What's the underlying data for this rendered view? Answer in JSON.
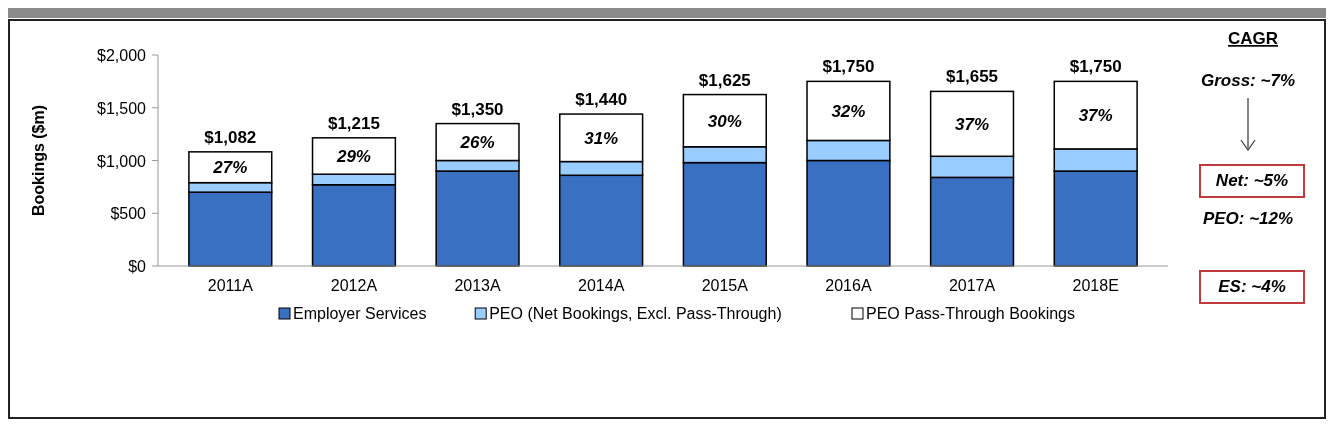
{
  "chart_data": {
    "type": "bar",
    "stacked": true,
    "ylabel": "Bookings ($m)",
    "categories": [
      "2011A",
      "2012A",
      "2013A",
      "2014A",
      "2015A",
      "2016A",
      "2017A",
      "2018E"
    ],
    "series": [
      {
        "name": "Employer Services",
        "color": "#3a70c2",
        "values": [
          700,
          770,
          900,
          860,
          980,
          1000,
          840,
          900
        ]
      },
      {
        "name": "PEO (Net Bookings, Excl. Pass-Through)",
        "color": "#99ccff",
        "values": [
          90,
          100,
          100,
          130,
          150,
          190,
          200,
          210
        ]
      },
      {
        "name": "PEO Pass-Through Bookings",
        "color": "#ffffff",
        "values": [
          292,
          345,
          350,
          450,
          495,
          560,
          615,
          640
        ]
      }
    ],
    "totals": [
      "$1,082",
      "$1,215",
      "$1,350",
      "$1,440",
      "$1,625",
      "$1,750",
      "$1,655",
      "$1,750"
    ],
    "ylim": [
      0,
      2000
    ],
    "yticks": [
      {
        "value": 0,
        "label": "$0"
      },
      {
        "value": 500,
        "label": "$500"
      },
      {
        "value": 1000,
        "label": "$1,000"
      },
      {
        "value": 1500,
        "label": "$1,500"
      },
      {
        "value": 2000,
        "label": "$2,000"
      }
    ],
    "grid": false,
    "legend": "bottom",
    "annotations": [
      "CAGR",
      "Gross: ~7%",
      "Net: ~5%",
      "PEO: ~12%",
      "ES: ~4%",
      "27%",
      "29%",
      "26%",
      "31%",
      "30%",
      "32%",
      "37%",
      "37%"
    ]
  }
}
